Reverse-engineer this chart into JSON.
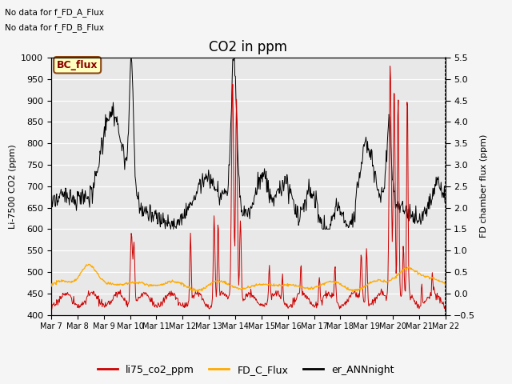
{
  "title": "CO2 in ppm",
  "text_upper_left": [
    "No data for f_FD_A_Flux",
    "No data for f_FD_B_Flux"
  ],
  "bc_flux_label": "BC_flux",
  "ylabel_left": "Li-7500 CO2 (ppm)",
  "ylabel_right": "FD chamber flux (ppm)",
  "ylim_left": [
    400,
    1000
  ],
  "ylim_right": [
    -0.5,
    5.5
  ],
  "xtick_labels": [
    "Mar 7",
    "Mar 8",
    "Mar 9",
    "Mar 10",
    "Mar 11",
    "Mar 12",
    "Mar 13",
    "Mar 14",
    "Mar 15",
    "Mar 16",
    "Mar 17",
    "Mar 18",
    "Mar 19",
    "Mar 20",
    "Mar 21",
    "Mar 22"
  ],
  "line_red": "#cc0000",
  "line_orange": "#ffaa00",
  "line_black": "#000000",
  "legend_labels": [
    "li75_co2_ppm",
    "FD_C_Flux",
    "er_ANNnight"
  ],
  "legend_colors": [
    "#cc0000",
    "#ffaa00",
    "#000000"
  ],
  "title_fontsize": 12,
  "label_fontsize": 8,
  "tick_fontsize": 8
}
